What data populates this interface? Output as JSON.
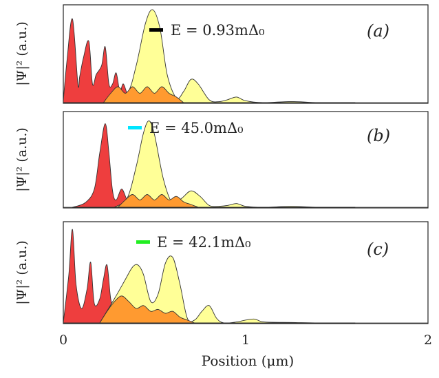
{
  "chart_data": {
    "type": "area",
    "xlabel": "Position (μm)",
    "xlim": [
      0,
      2
    ],
    "xticks": [
      "0",
      "1",
      "2"
    ],
    "colors": {
      "red": "#ee3e3e",
      "yellow": "#ffff8c",
      "overlap": "#ff9a30"
    },
    "panels": [
      {
        "label": "(a)",
        "ylabel": "|Ψ|² (a.u.)",
        "energy": "E = 0.93mΔ₀",
        "marker_color": "#000000",
        "series": [
          {
            "name": "red",
            "x": [
              0.0,
              0.02,
              0.05,
              0.08,
              0.09,
              0.11,
              0.14,
              0.16,
              0.18,
              0.21,
              0.23,
              0.25,
              0.27,
              0.29,
              0.31,
              0.33,
              0.36
            ],
            "y": [
              0.02,
              0.45,
              0.9,
              0.2,
              0.28,
              0.48,
              0.66,
              0.2,
              0.3,
              0.4,
              0.6,
              0.2,
              0.2,
              0.32,
              0.12,
              0.2,
              0.02
            ]
          },
          {
            "name": "yellow",
            "x": [
              0.25,
              0.35,
              0.4,
              0.45,
              0.49,
              0.53,
              0.57,
              0.62,
              0.66,
              0.7,
              0.74,
              0.8,
              0.85,
              0.9,
              0.95,
              1.0,
              1.1,
              1.25,
              1.4,
              1.6
            ],
            "y": [
              0.0,
              0.1,
              0.4,
              0.85,
              1.0,
              0.8,
              0.3,
              0.05,
              0.12,
              0.25,
              0.2,
              0.03,
              0.01,
              0.03,
              0.06,
              0.02,
              0.0,
              0.012,
              0.0,
              0.0
            ]
          },
          {
            "name": "overlap",
            "x": [
              0.22,
              0.26,
              0.3,
              0.34,
              0.38,
              0.42,
              0.46,
              0.5,
              0.54,
              0.58,
              0.62,
              0.66
            ],
            "y": [
              0.0,
              0.1,
              0.17,
              0.1,
              0.17,
              0.1,
              0.17,
              0.1,
              0.17,
              0.1,
              0.06,
              0.0
            ]
          }
        ]
      },
      {
        "label": "(b)",
        "ylabel": "|Ψ|² (a.u.)",
        "energy": "E = 45.0mΔ₀",
        "marker_color": "#00e5ff",
        "series": [
          {
            "name": "red",
            "x": [
              0.05,
              0.12,
              0.17,
              0.2,
              0.23,
              0.25,
              0.27,
              0.29,
              0.32,
              0.35,
              0.38,
              0.41,
              0.44
            ],
            "y": [
              0.0,
              0.05,
              0.2,
              0.6,
              0.92,
              0.6,
              0.18,
              0.08,
              0.2,
              0.08,
              0.03,
              0.01,
              0.0
            ]
          },
          {
            "name": "yellow",
            "x": [
              0.28,
              0.35,
              0.4,
              0.44,
              0.47,
              0.5,
              0.55,
              0.6,
              0.65,
              0.7,
              0.75,
              0.8,
              0.85,
              0.9,
              0.95,
              1.0,
              1.1,
              1.25,
              1.4,
              1.6
            ],
            "y": [
              0.0,
              0.1,
              0.45,
              0.82,
              0.95,
              0.8,
              0.3,
              0.04,
              0.1,
              0.18,
              0.12,
              0.02,
              0.01,
              0.02,
              0.04,
              0.01,
              0.0,
              0.01,
              0.0,
              0.0
            ]
          },
          {
            "name": "overlap",
            "x": [
              0.3,
              0.34,
              0.38,
              0.42,
              0.46,
              0.5,
              0.54,
              0.58,
              0.62,
              0.66,
              0.7,
              0.74
            ],
            "y": [
              0.0,
              0.08,
              0.14,
              0.08,
              0.14,
              0.08,
              0.14,
              0.08,
              0.12,
              0.06,
              0.03,
              0.0
            ]
          }
        ]
      },
      {
        "label": "(c)",
        "ylabel": "|Ψ|² (a.u.)",
        "energy": "E = 42.1mΔ₀",
        "marker_color": "#22ee22",
        "series": [
          {
            "name": "red",
            "x": [
              0.0,
              0.03,
              0.05,
              0.07,
              0.1,
              0.13,
              0.15,
              0.17,
              0.2,
              0.22,
              0.24,
              0.26,
              0.28,
              0.3,
              0.34,
              0.38,
              0.42
            ],
            "y": [
              0.0,
              0.5,
              0.97,
              0.4,
              0.15,
              0.35,
              0.63,
              0.2,
              0.25,
              0.45,
              0.6,
              0.25,
              0.15,
              0.1,
              0.05,
              0.02,
              0.0
            ]
          },
          {
            "name": "yellow",
            "x": [
              0.2,
              0.28,
              0.34,
              0.38,
              0.41,
              0.44,
              0.48,
              0.52,
              0.56,
              0.6,
              0.64,
              0.68,
              0.72,
              0.76,
              0.8,
              0.84,
              0.88,
              0.95,
              1.0,
              1.05,
              1.1,
              1.25,
              1.4,
              1.6
            ],
            "y": [
              0.0,
              0.25,
              0.45,
              0.58,
              0.6,
              0.5,
              0.22,
              0.3,
              0.62,
              0.68,
              0.4,
              0.05,
              0.03,
              0.12,
              0.18,
              0.05,
              0.0,
              0.01,
              0.03,
              0.04,
              0.01,
              0.005,
              0.0,
              0.0
            ]
          },
          {
            "name": "overlap",
            "x": [
              0.2,
              0.24,
              0.28,
              0.32,
              0.36,
              0.4,
              0.44,
              0.48,
              0.52,
              0.56,
              0.6,
              0.64,
              0.68,
              0.72
            ],
            "y": [
              0.0,
              0.12,
              0.22,
              0.28,
              0.22,
              0.15,
              0.18,
              0.12,
              0.14,
              0.1,
              0.12,
              0.06,
              0.03,
              0.0
            ]
          }
        ]
      }
    ]
  }
}
